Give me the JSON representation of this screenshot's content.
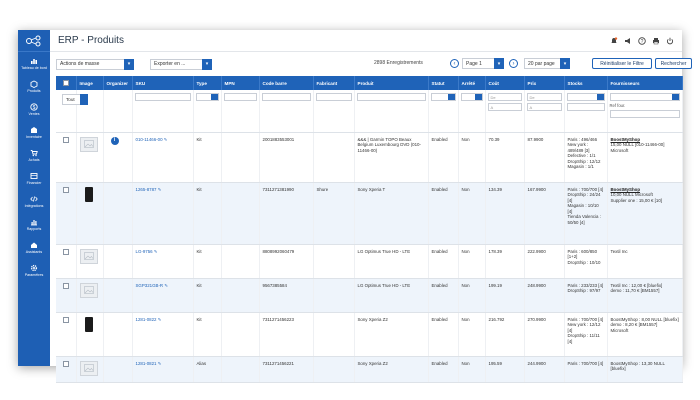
{
  "window": {
    "title": "ERP - Produits"
  },
  "colors": {
    "sidebar": "#1e5fb4",
    "accent": "#1f63b8",
    "header": "#1f63b8",
    "alert": "#e8632b"
  },
  "sidebar": {
    "items": [
      {
        "label": "Tableau de bord",
        "icon": "dashboard-icon"
      },
      {
        "label": "Produits",
        "icon": "box-icon"
      },
      {
        "label": "Ventes",
        "icon": "dollar-icon"
      },
      {
        "label": "Inventaire",
        "icon": "warehouse-icon"
      },
      {
        "label": "Achats",
        "icon": "cart-icon"
      },
      {
        "label": "Financier",
        "icon": "finance-icon"
      },
      {
        "label": "Intégrations",
        "icon": "code-icon"
      },
      {
        "label": "Rapports",
        "icon": "chart-icon"
      },
      {
        "label": "Assistants",
        "icon": "assistant-icon"
      },
      {
        "label": "Paramètres",
        "icon": "gear-icon"
      }
    ]
  },
  "toolbar": {
    "mass_actions": "Actions de masse",
    "export": "Exporter en ...",
    "records": "2898 Enregistrements",
    "page": "Page 1",
    "per_page": "20 par page",
    "reset_filter": "Réinitialiser le Filtre",
    "search": "Rechercher"
  },
  "table": {
    "columns": [
      "",
      "Image",
      "Organizer",
      "SKU",
      "Type",
      "MPN",
      "Code barre",
      "Fabricant",
      "Produit",
      "Statut",
      "Arrêté",
      "Coût",
      "Prix",
      "Stocks",
      "Fournisseurs"
    ],
    "filters": {
      "type_select": "Tout",
      "cost_from": "De",
      "cost_to": "A",
      "price_from": "De",
      "price_to": "A",
      "supplier_ref": "Ref four."
    },
    "rows": [
      {
        "image": "placeholder",
        "organizer": true,
        "sku": "010-11466-00",
        "type": "Kit",
        "mpn": "",
        "barcode": "2001883553001",
        "manufacturer": "",
        "product": "&&& | Garmin TOPO Beaux Belgium Luxembourg DVD (010-11466-00)",
        "status": "Enabled",
        "stopped": "Non",
        "cost": "70.39",
        "price": "87.9900",
        "stocks": "Paris : 496/466\nNew york : 489/489 [3]\nDefective : 1/1\nDropShip : 12/12\nMagasin : 1/1",
        "supplier_name": "BoostMyShop",
        "supplier_details": "15,00 NULL [010-11466-00]\nMicrosoft"
      },
      {
        "image": "phone",
        "organizer": false,
        "sku": "1265-8787",
        "type": "Kit",
        "mpn": "",
        "barcode": "7311271381990",
        "manufacturer": "Shure",
        "product": "Sony Xperia T",
        "status": "Enabled",
        "stopped": "Non",
        "cost": "134.39",
        "price": "167.9900",
        "stocks": "Paris : 700/700 [4]\nDropShip : 24/24 [4]\nMagasin : 10/10 [4]\nTienda Valencia : 50/50 [4]",
        "supplier_name": "BoostMyShop",
        "supplier_details": "10,00 NULL Microsoft\nSupplier one : 15,00 € [10]"
      },
      {
        "image": "placeholder",
        "organizer": false,
        "sku": "LG-9756",
        "type": "Kit",
        "mpn": "",
        "barcode": "8808992060479",
        "manufacturer": "",
        "product": "LG Optimus True HD - LTE",
        "status": "Enabled",
        "stopped": "Non",
        "cost": "178.39",
        "price": "222.9900",
        "stocks": "Paris : 600/850 [1+2]\nDropShip : 10/10",
        "supplier_name": "",
        "supplier_details": "Textil Inc"
      },
      {
        "image": "placeholder",
        "organizer": false,
        "sku": "SGP321GB-R",
        "type": "Kit",
        "mpn": "",
        "barcode": "9567385584",
        "manufacturer": "",
        "product": "LG Optimus True HD - LTE",
        "status": "Enabled",
        "stopped": "Non",
        "cost": "199.19",
        "price": "248.9900",
        "stocks": "Paris : 233/233 [4]\nDropShip : 97/97",
        "supplier_name": "",
        "supplier_details": "Textil Inc : 12,00 € [bluefix]\ndemo : 11,70 € [BM1557]"
      },
      {
        "image": "phone",
        "organizer": false,
        "sku": "1281-0822",
        "type": "Kit",
        "mpn": "",
        "barcode": "7311271456223",
        "manufacturer": "",
        "product": "Sony Xperia Z2",
        "status": "Enabled",
        "stopped": "Non",
        "cost": "216.792",
        "price": "270.9900",
        "stocks": "Paris : 700/700 [4]\nNew york : 12/12 [4]\nDropShip : 11/11 [4]",
        "supplier_name": "",
        "supplier_details": "BoostMyShop : 8,00 NULL [bluefix]\ndemo : 8,20 € [BM1557]\nMicrosoft"
      },
      {
        "image": "placeholder",
        "organizer": false,
        "sku": "1281-0821",
        "type": "Alias",
        "mpn": "",
        "barcode": "7311271456221",
        "manufacturer": "",
        "product": "Sony Xperia Z2",
        "status": "Enabled",
        "stopped": "Non",
        "cost": "195.59",
        "price": "244.9900",
        "stocks": "Paris : 700/700 [4]",
        "supplier_name": "",
        "supplier_details": "BoostMyShop : 13,30 NULL [bluefix]"
      }
    ]
  }
}
